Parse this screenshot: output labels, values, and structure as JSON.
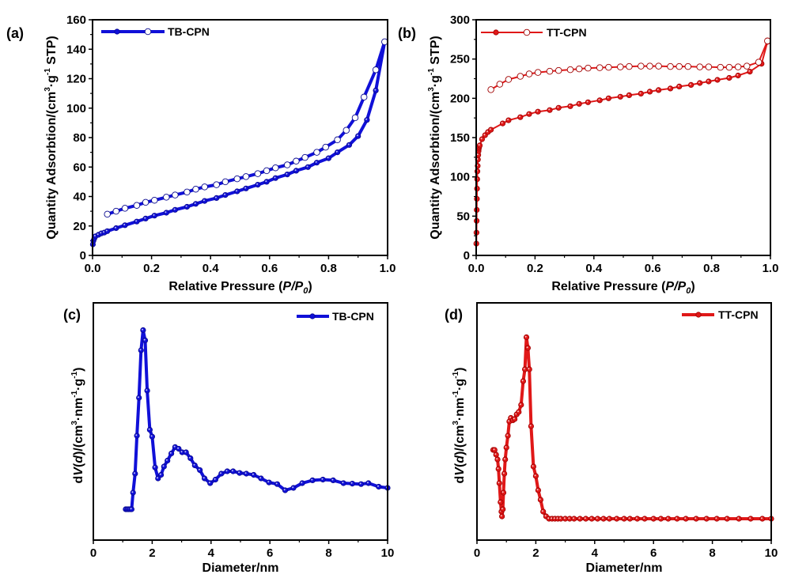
{
  "chart_data": [
    {
      "id": "a",
      "type": "line",
      "panel_label": "(a)",
      "title": "",
      "xlabel": "Relative Pressure (P/P0)",
      "xlabel_parts": {
        "prefix": "Relative Pressure (",
        "p": "P",
        "slash": "/",
        "p0": "P",
        "sub": "0",
        "suffix": ")"
      },
      "ylabel": "Quantity Adsorbtion/(cm3·g-1 STP)",
      "ylabel_parts": {
        "a": "Quantity Adsorbtion/(cm",
        "sup1": "3",
        "b": "·g",
        "sup2": "-1",
        "c": " STP)"
      },
      "xlim": [
        0,
        1.0
      ],
      "ylim": [
        0,
        160
      ],
      "xticks": [
        "0.0",
        "0.2",
        "0.4",
        "0.6",
        "0.8",
        "1.0"
      ],
      "yticks": [
        "0",
        "20",
        "40",
        "60",
        "80",
        "100",
        "120",
        "140",
        "160"
      ],
      "grid": false,
      "legend": {
        "label": "TB-CPN",
        "position": "top-left"
      },
      "color": "#1010d8",
      "series": [
        {
          "name": "TB-CPN adsorption",
          "marker": "filled-circle",
          "x": [
            0.001,
            0.003,
            0.006,
            0.01,
            0.02,
            0.03,
            0.04,
            0.05,
            0.08,
            0.11,
            0.15,
            0.18,
            0.21,
            0.25,
            0.28,
            0.32,
            0.35,
            0.38,
            0.42,
            0.45,
            0.49,
            0.52,
            0.56,
            0.59,
            0.62,
            0.66,
            0.69,
            0.73,
            0.76,
            0.8,
            0.83,
            0.87,
            0.9,
            0.93,
            0.96,
            0.99
          ],
          "y": [
            7.5,
            10,
            11.5,
            13,
            14,
            15,
            15.5,
            16.5,
            18.5,
            20.5,
            23,
            25,
            27,
            29,
            31,
            33,
            35,
            37,
            39,
            41,
            43.5,
            45.5,
            48,
            50,
            52.5,
            55,
            57.5,
            60,
            63,
            66,
            70,
            75,
            81,
            92,
            112,
            145
          ]
        },
        {
          "name": "TB-CPN desorption",
          "marker": "open-circle",
          "x": [
            0.05,
            0.08,
            0.11,
            0.15,
            0.18,
            0.21,
            0.25,
            0.28,
            0.32,
            0.35,
            0.38,
            0.42,
            0.45,
            0.49,
            0.52,
            0.56,
            0.59,
            0.62,
            0.66,
            0.69,
            0.72,
            0.76,
            0.79,
            0.83,
            0.86,
            0.89,
            0.92,
            0.96,
            0.99
          ],
          "y": [
            28,
            30,
            32,
            34,
            36,
            37.5,
            39.5,
            41,
            43,
            45,
            46.5,
            48,
            50,
            52,
            53.5,
            55.5,
            57.5,
            59.5,
            61.5,
            64,
            66.5,
            70,
            73.5,
            78.5,
            85,
            93.5,
            107.5,
            126,
            145
          ]
        }
      ]
    },
    {
      "id": "b",
      "type": "line",
      "panel_label": "(b)",
      "title": "",
      "xlabel": "Relative Pressure (P/P0)",
      "xlabel_parts": {
        "prefix": "Relative Pressure (",
        "p": "P",
        "slash": "/",
        "p0": "P",
        "sub": "0",
        "suffix": ")"
      },
      "ylabel": "Quantity Adsorbtion/(cm3·g-1 STP)",
      "ylabel_parts": {
        "a": "Quantity Adsorbtion/(cm",
        "sup1": "3",
        "b": "·g",
        "sup2": "-1",
        "c": " STP)"
      },
      "xlim": [
        0,
        1.0
      ],
      "ylim": [
        0,
        300
      ],
      "xticks": [
        "0.0",
        "0.2",
        "0.4",
        "0.6",
        "0.8",
        "1.0"
      ],
      "yticks": [
        "0",
        "50",
        "100",
        "150",
        "200",
        "250",
        "300"
      ],
      "grid": false,
      "legend": {
        "label": "TT-CPN",
        "position": "top-left"
      },
      "color": "#e01818",
      "series": [
        {
          "name": "TT-CPN adsorption",
          "marker": "filled-circle",
          "x": [
            0.0005,
            0.001,
            0.0015,
            0.002,
            0.0025,
            0.003,
            0.0035,
            0.004,
            0.005,
            0.006,
            0.007,
            0.008,
            0.009,
            0.01,
            0.012,
            0.02,
            0.03,
            0.04,
            0.05,
            0.09,
            0.11,
            0.15,
            0.18,
            0.21,
            0.25,
            0.28,
            0.32,
            0.35,
            0.38,
            0.42,
            0.45,
            0.49,
            0.52,
            0.56,
            0.59,
            0.62,
            0.66,
            0.69,
            0.73,
            0.76,
            0.79,
            0.82,
            0.86,
            0.89,
            0.93,
            0.97,
            0.99
          ],
          "y": [
            15,
            29,
            44,
            58,
            72,
            85,
            97,
            107,
            114,
            122,
            128,
            133,
            136,
            138,
            140,
            148,
            153,
            157,
            160,
            168,
            172,
            176,
            180,
            183,
            185,
            188,
            190,
            193,
            195,
            197.5,
            200,
            202,
            204,
            206,
            208.5,
            210.5,
            212.5,
            215,
            217,
            219.5,
            221.5,
            223.5,
            226,
            229,
            234,
            244,
            272
          ]
        },
        {
          "name": "TT-CPN desorption",
          "marker": "open-circle",
          "x": [
            0.05,
            0.08,
            0.11,
            0.15,
            0.18,
            0.21,
            0.25,
            0.28,
            0.32,
            0.35,
            0.38,
            0.42,
            0.45,
            0.49,
            0.52,
            0.56,
            0.59,
            0.62,
            0.66,
            0.69,
            0.72,
            0.76,
            0.79,
            0.83,
            0.86,
            0.89,
            0.92,
            0.96,
            0.99
          ],
          "y": [
            211,
            218,
            224,
            228,
            231,
            233,
            234.5,
            235.5,
            236.5,
            237.5,
            238.5,
            239,
            239.5,
            240,
            240.5,
            241,
            241,
            241,
            240.5,
            240.5,
            240.5,
            240,
            240,
            239.5,
            239.5,
            240,
            241,
            246,
            273
          ]
        }
      ]
    },
    {
      "id": "c",
      "type": "line",
      "panel_label": "(c)",
      "title": "",
      "xlabel": "Diameter/nm",
      "ylabel": "dV(d)/(cm3·nm-1·g-1)",
      "ylabel_parts": {
        "a": "d",
        "v": "V",
        "b": "(",
        "d": "d",
        "c": ")/(cm",
        "sup1": "3",
        "e": "·nm",
        "sup2": "-1",
        "f": "·g",
        "sup3": "-1",
        "g": ")"
      },
      "xlim": [
        0,
        10
      ],
      "ylim": [
        0,
        1
      ],
      "y_units": "arbitrary (no y tick labels shown)",
      "xticks": [
        "0",
        "2",
        "4",
        "6",
        "8",
        "10"
      ],
      "grid": false,
      "legend": {
        "label": "TB-CPN",
        "position": "top-right"
      },
      "color": "#1010d8",
      "series": [
        {
          "name": "TB-CPN",
          "marker": "filled-circle",
          "x": [
            1.1,
            1.15,
            1.2,
            1.25,
            1.3,
            1.35,
            1.42,
            1.48,
            1.55,
            1.62,
            1.69,
            1.76,
            1.83,
            1.92,
            2.0,
            2.1,
            2.2,
            2.3,
            2.4,
            2.52,
            2.65,
            2.78,
            2.9,
            3.02,
            3.15,
            3.3,
            3.45,
            3.62,
            3.78,
            3.97,
            4.15,
            4.35,
            4.55,
            4.75,
            4.97,
            5.2,
            5.45,
            5.7,
            5.97,
            6.25,
            6.52,
            6.8,
            7.1,
            7.45,
            7.8,
            8.15,
            8.5,
            8.8,
            9.1,
            9.35,
            9.7,
            10.0
          ],
          "y": [
            0.13,
            0.13,
            0.13,
            0.13,
            0.13,
            0.2,
            0.28,
            0.44,
            0.6,
            0.8,
            0.885,
            0.842,
            0.63,
            0.465,
            0.436,
            0.306,
            0.26,
            0.275,
            0.31,
            0.335,
            0.365,
            0.392,
            0.385,
            0.37,
            0.37,
            0.345,
            0.315,
            0.295,
            0.26,
            0.24,
            0.255,
            0.28,
            0.29,
            0.29,
            0.283,
            0.28,
            0.275,
            0.26,
            0.243,
            0.236,
            0.21,
            0.22,
            0.24,
            0.252,
            0.255,
            0.252,
            0.24,
            0.238,
            0.236,
            0.24,
            0.225,
            0.22
          ]
        }
      ]
    },
    {
      "id": "d",
      "type": "line",
      "panel_label": "(d)",
      "title": "",
      "xlabel": "Diameter/nm",
      "ylabel": "dV(d)/(cm3·nm-1·g-1)",
      "ylabel_parts": {
        "a": "d",
        "v": "V",
        "b": "(",
        "d": "d",
        "c": ")/(cm",
        "sup1": "3",
        "e": "·nm",
        "sup2": "-1",
        "f": "·g",
        "sup3": "-1",
        "g": ")"
      },
      "xlim": [
        0,
        10
      ],
      "ylim": [
        0,
        1
      ],
      "y_units": "arbitrary (no y tick labels shown)",
      "xticks": [
        "0",
        "2",
        "4",
        "6",
        "8",
        "10"
      ],
      "grid": false,
      "legend": {
        "label": "TT-CPN",
        "position": "top-right"
      },
      "color": "#e01818",
      "series": [
        {
          "name": "TT-CPN",
          "marker": "filled-circle",
          "x": [
            0.55,
            0.6,
            0.65,
            0.7,
            0.73,
            0.76,
            0.8,
            0.83,
            0.85,
            0.88,
            0.9,
            0.93,
            0.96,
            1.0,
            1.05,
            1.1,
            1.15,
            1.22,
            1.28,
            1.35,
            1.42,
            1.5,
            1.57,
            1.63,
            1.68,
            1.73,
            1.78,
            1.84,
            1.92,
            2.0,
            2.08,
            2.16,
            2.25,
            2.35,
            2.45,
            2.55,
            2.65,
            2.75,
            2.85,
            3.0,
            3.15,
            3.3,
            3.5,
            3.7,
            3.9,
            4.1,
            4.3,
            4.5,
            4.75,
            5.0,
            5.2,
            5.45,
            5.7,
            6.0,
            6.25,
            6.5,
            6.8,
            7.1,
            7.45,
            7.8,
            8.15,
            8.5,
            8.9,
            9.3,
            9.7,
            10.0
          ],
          "y": [
            0.38,
            0.38,
            0.36,
            0.34,
            0.3,
            0.24,
            0.16,
            0.12,
            0.1,
            0.13,
            0.2,
            0.28,
            0.34,
            0.39,
            0.44,
            0.5,
            0.515,
            0.505,
            0.51,
            0.53,
            0.54,
            0.57,
            0.67,
            0.72,
            0.855,
            0.81,
            0.72,
            0.48,
            0.31,
            0.27,
            0.21,
            0.17,
            0.12,
            0.1,
            0.09,
            0.09,
            0.09,
            0.09,
            0.09,
            0.09,
            0.09,
            0.09,
            0.09,
            0.09,
            0.09,
            0.09,
            0.09,
            0.09,
            0.09,
            0.09,
            0.09,
            0.09,
            0.09,
            0.09,
            0.09,
            0.09,
            0.09,
            0.09,
            0.09,
            0.09,
            0.09,
            0.09,
            0.09,
            0.09,
            0.09,
            0.09
          ]
        }
      ]
    }
  ]
}
